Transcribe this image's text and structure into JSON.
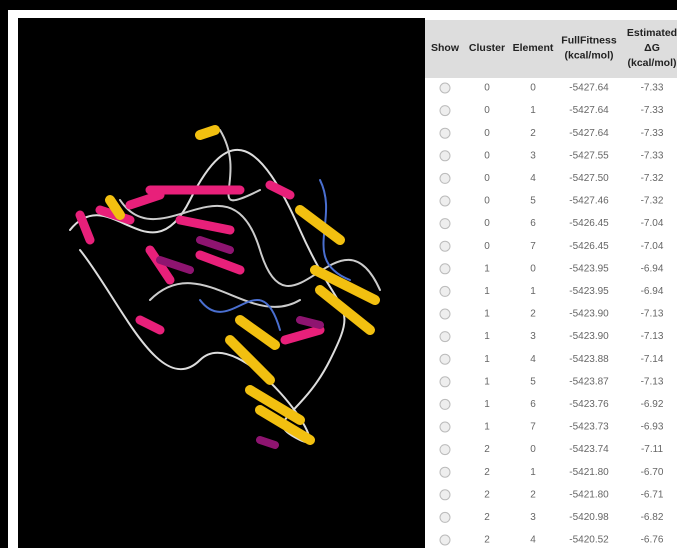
{
  "table": {
    "header": [
      [
        "Show"
      ],
      [
        "Cluster"
      ],
      [
        "Element"
      ],
      [
        "FullFitness",
        "(kcal/mol)"
      ],
      [
        "Estimated",
        "ΔG",
        "(kcal/mol)"
      ]
    ],
    "rows": [
      [
        "0",
        "0",
        "-5427.64",
        "-7.33"
      ],
      [
        "0",
        "1",
        "-5427.64",
        "-7.33"
      ],
      [
        "0",
        "2",
        "-5427.64",
        "-7.33"
      ],
      [
        "0",
        "3",
        "-5427.55",
        "-7.33"
      ],
      [
        "0",
        "4",
        "-5427.50",
        "-7.32"
      ],
      [
        "0",
        "5",
        "-5427.46",
        "-7.32"
      ],
      [
        "0",
        "6",
        "-5426.45",
        "-7.04"
      ],
      [
        "0",
        "7",
        "-5426.45",
        "-7.04"
      ],
      [
        "1",
        "0",
        "-5423.95",
        "-6.94"
      ],
      [
        "1",
        "1",
        "-5423.95",
        "-6.94"
      ],
      [
        "1",
        "2",
        "-5423.90",
        "-7.13"
      ],
      [
        "1",
        "3",
        "-5423.90",
        "-7.13"
      ],
      [
        "1",
        "4",
        "-5423.88",
        "-7.14"
      ],
      [
        "1",
        "5",
        "-5423.87",
        "-7.13"
      ],
      [
        "1",
        "6",
        "-5423.76",
        "-6.92"
      ],
      [
        "1",
        "7",
        "-5423.73",
        "-6.93"
      ],
      [
        "2",
        "0",
        "-5423.74",
        "-7.11"
      ],
      [
        "2",
        "1",
        "-5421.80",
        "-6.70"
      ],
      [
        "2",
        "2",
        "-5421.80",
        "-6.71"
      ],
      [
        "2",
        "3",
        "-5420.98",
        "-6.82"
      ],
      [
        "2",
        "4",
        "-5420.52",
        "-6.76"
      ]
    ]
  }
}
